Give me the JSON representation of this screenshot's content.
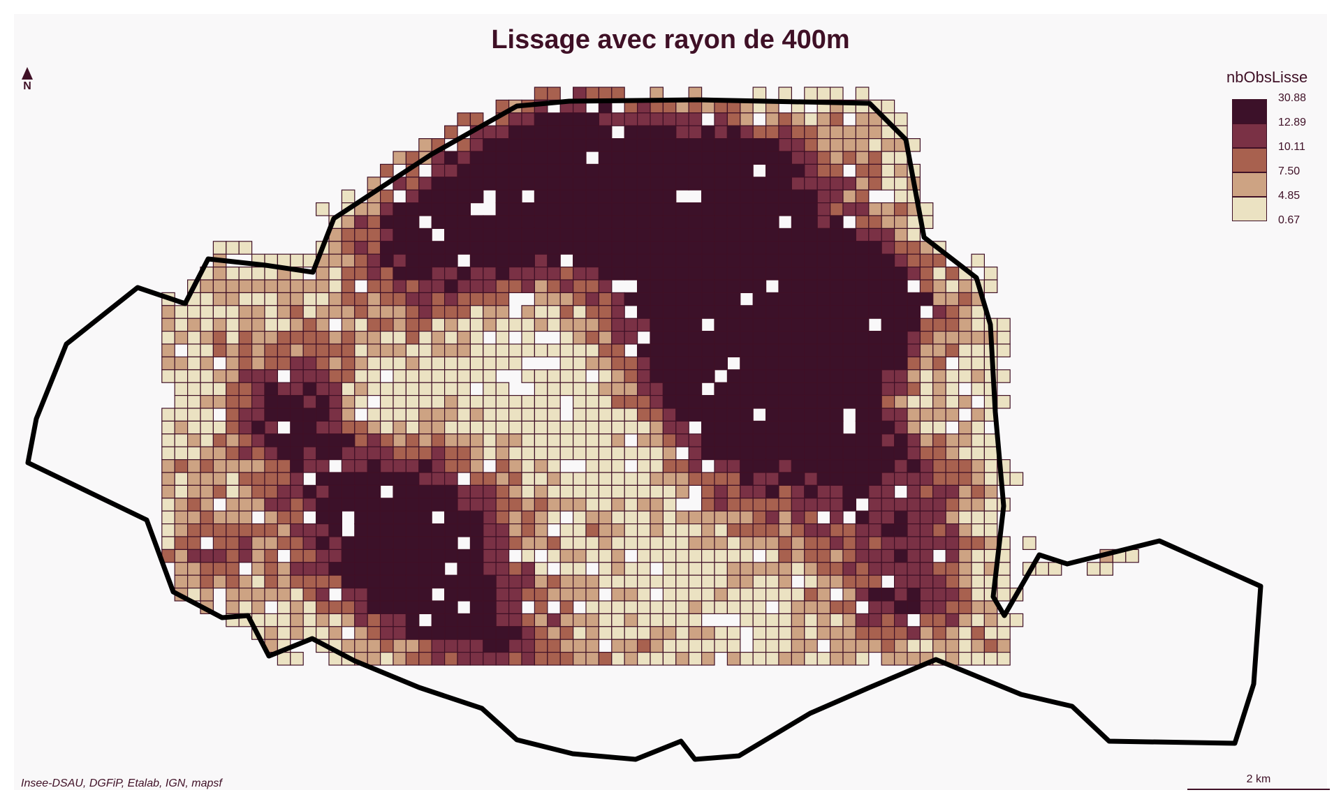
{
  "title": "Lissage avec rayon de 400m",
  "north_label": "N",
  "legend": {
    "title": "nbObsLisse",
    "breaks": [
      "30.88",
      "12.89",
      "10.11",
      "7.50",
      "4.85",
      "0.67"
    ],
    "colors": [
      "#3c1129",
      "#7a3145",
      "#a8614f",
      "#cda383",
      "#ebe2c2"
    ]
  },
  "source": "Insee-DSAU, DGFiP, Etalab, IGN, mapsf",
  "scale_label": "2 km",
  "colors": {
    "background": "#f9f8f9",
    "cell_stroke": "#3f1026",
    "boundary": "#000000",
    "text": "#3f1026"
  }
}
